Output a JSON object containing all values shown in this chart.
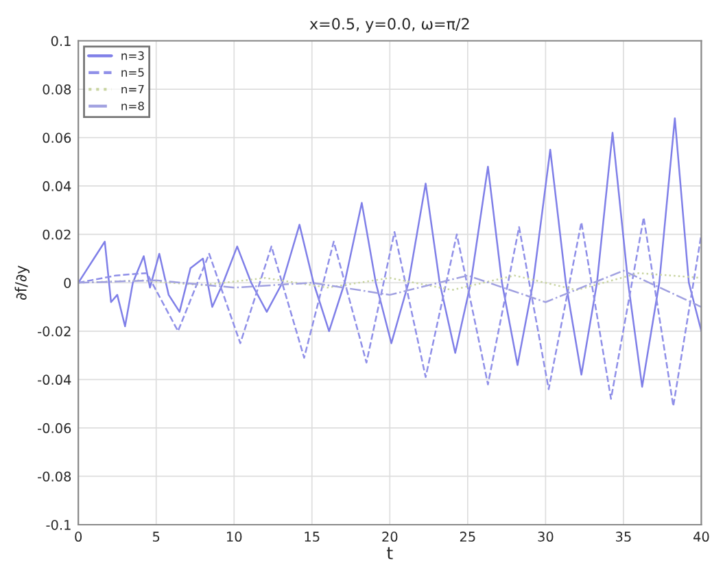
{
  "chart_data": {
    "type": "line",
    "title": "x=0.5, y=0.0, ω=π/2",
    "xlabel": "t",
    "ylabel": "∂f/∂y",
    "xlim": [
      0,
      40
    ],
    "xticks": [
      0,
      5,
      10,
      15,
      20,
      25,
      30,
      35,
      40
    ],
    "ylim": [
      -0.1,
      0.1
    ],
    "yticks": [
      -0.1,
      -0.08,
      -0.06,
      -0.04,
      -0.02,
      0,
      0.02,
      0.04,
      0.06,
      0.08,
      0.1
    ],
    "grid": true,
    "legend": "top left",
    "series": [
      {
        "name": "n=3",
        "color": "#7f7fe8",
        "line_style": "solid",
        "x": [
          0,
          0.5,
          1,
          1.7,
          2.1,
          2.5,
          3.0,
          3.5,
          4.2,
          4.6,
          5.2,
          5.8,
          6.5,
          7.2,
          8.0,
          8.6,
          9.3,
          10.2,
          11.1,
          12.1,
          13.1,
          14.2,
          15.1,
          16.1,
          17.1,
          18.2,
          19.1,
          20.1,
          21.2,
          22.3,
          23.2,
          24.2,
          25.2,
          26.3,
          27.2,
          28.2,
          29.2,
          30.3,
          31.3,
          32.3,
          33.3,
          34.3,
          35.3,
          36.2,
          37.3,
          38.3,
          39.2,
          40
        ],
        "values": [
          0,
          0.005,
          0.01,
          0.017,
          -0.008,
          -0.005,
          -0.018,
          0.0,
          0.011,
          -0.002,
          0.012,
          -0.005,
          -0.012,
          0.006,
          0.01,
          -0.01,
          0.0,
          0.015,
          0.0,
          -0.012,
          0.0,
          0.024,
          0.0,
          -0.02,
          0.0,
          0.033,
          0.0,
          -0.025,
          0.0,
          0.041,
          0.0,
          -0.029,
          0.0,
          0.048,
          0.0,
          -0.034,
          0.0,
          0.055,
          0.0,
          -0.038,
          0.0,
          0.062,
          0.0,
          -0.043,
          0.0,
          0.068,
          0.0,
          -0.02
        ]
      },
      {
        "name": "n=5",
        "color": "#8f8fe8",
        "line_style": "dashed",
        "x": [
          0,
          2.4,
          4.4,
          6.4,
          8.4,
          10.4,
          12.4,
          14.5,
          16.4,
          18.5,
          20.3,
          22.3,
          24.3,
          26.3,
          28.3,
          30.2,
          32.3,
          34.2,
          36.3,
          38.2,
          40
        ],
        "values": [
          0,
          0.003,
          0.004,
          -0.02,
          0.012,
          -0.025,
          0.015,
          -0.031,
          0.017,
          -0.033,
          0.021,
          -0.039,
          0.02,
          -0.042,
          0.023,
          -0.044,
          0.025,
          -0.048,
          0.027,
          -0.051,
          0.02
        ]
      },
      {
        "name": "n=7",
        "color": "#c8d4a0",
        "line_style": "dotted",
        "x": [
          0,
          4,
          8,
          12,
          16,
          20,
          24,
          28,
          32,
          36,
          40
        ],
        "values": [
          0,
          0.001,
          -0.001,
          0.002,
          -0.002,
          0.002,
          -0.003,
          0.003,
          -0.003,
          0.004,
          0.002
        ]
      },
      {
        "name": "n=8",
        "color": "#a0a0e0",
        "line_style": "dashdot",
        "x": [
          0,
          5,
          10,
          15,
          20,
          25,
          30,
          35,
          40
        ],
        "values": [
          0,
          0.001,
          -0.002,
          0.0,
          -0.005,
          0.003,
          -0.008,
          0.005,
          -0.01
        ]
      }
    ]
  }
}
